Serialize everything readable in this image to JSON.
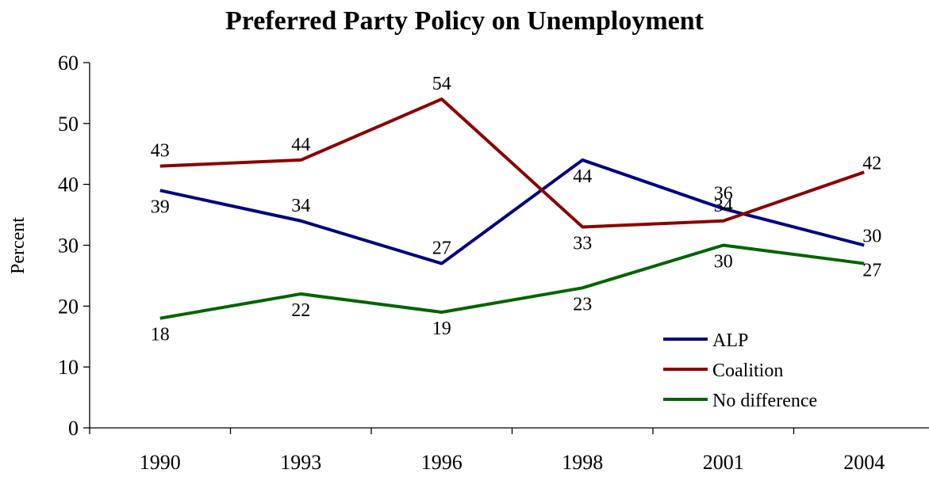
{
  "chart_data": {
    "type": "line",
    "title": "Preferred Party Policy on Unemployment",
    "xlabel": "",
    "ylabel": "Percent",
    "categories": [
      "1990",
      "1993",
      "1996",
      "1998",
      "2001",
      "2004"
    ],
    "ylim": [
      0,
      60
    ],
    "yticks": [
      0,
      10,
      20,
      30,
      40,
      50,
      60
    ],
    "grid": false,
    "legend_position": "bottom-right",
    "series": [
      {
        "name": "ALP",
        "color": "#000080",
        "values": [
          39,
          34,
          27,
          44,
          36,
          30
        ]
      },
      {
        "name": "Coalition",
        "color": "#8B0000",
        "values": [
          43,
          44,
          54,
          33,
          34,
          42
        ]
      },
      {
        "name": "No difference",
        "color": "#006400",
        "values": [
          18,
          22,
          19,
          23,
          30,
          27
        ]
      }
    ]
  }
}
